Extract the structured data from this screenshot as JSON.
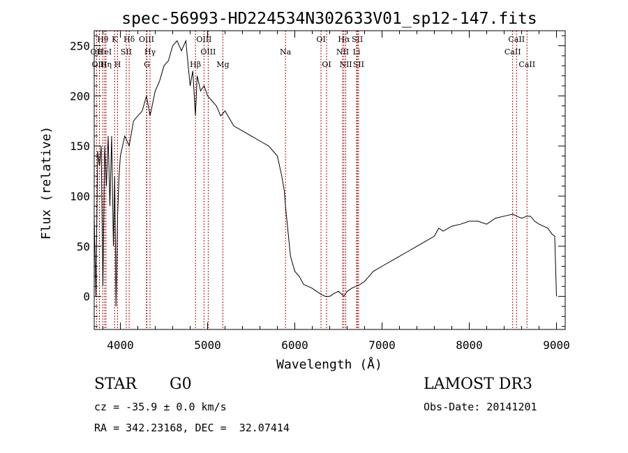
{
  "chart_data": {
    "type": "line",
    "title": "spec-56993-HD224534N302633V01_sp12-147.fits",
    "xlabel": "Wavelength (Å)",
    "ylabel": "Flux (relative)",
    "xlim": [
      3700,
      9100
    ],
    "ylim": [
      -33,
      265
    ],
    "x_ticks": [
      4000,
      5000,
      6000,
      7000,
      8000,
      9000
    ],
    "y_ticks": [
      0,
      50,
      100,
      150,
      200,
      250
    ],
    "grid": false,
    "series": [
      {
        "x": [
          3700,
          3720,
          3740,
          3760,
          3780,
          3800,
          3820,
          3840,
          3860,
          3880,
          3900,
          3920,
          3935,
          3950,
          3968,
          3985,
          4000,
          4050,
          4101,
          4150,
          4200,
          4250,
          4300,
          4340,
          4400,
          4450,
          4500,
          4550,
          4600,
          4650,
          4700,
          4750,
          4800,
          4830,
          4861,
          4880,
          4920,
          4960,
          5000,
          5050,
          5100,
          5150,
          5200,
          5300,
          5400,
          5500,
          5600,
          5700,
          5800,
          5850,
          5880,
          5893,
          5910,
          5950,
          6000,
          6050,
          6100,
          6150,
          6200,
          6250,
          6300,
          6350,
          6400,
          6450,
          6500,
          6563,
          6600,
          6650,
          6700,
          6750,
          6800,
          6850,
          6900,
          7000,
          7100,
          7200,
          7300,
          7400,
          7500,
          7600,
          7650,
          7700,
          7800,
          7900,
          8000,
          8100,
          8200,
          8300,
          8400,
          8500,
          8542,
          8600,
          8662,
          8700,
          8750,
          8800,
          8850,
          8900,
          8950,
          8980,
          9000
        ],
        "y": [
          80,
          0,
          145,
          130,
          150,
          10,
          150,
          110,
          160,
          90,
          160,
          50,
          120,
          -10,
          80,
          120,
          140,
          160,
          150,
          175,
          180,
          185,
          200,
          180,
          205,
          215,
          230,
          235,
          250,
          255,
          245,
          255,
          210,
          225,
          180,
          220,
          205,
          210,
          200,
          195,
          190,
          180,
          185,
          170,
          165,
          160,
          155,
          150,
          140,
          120,
          105,
          90,
          75,
          40,
          25,
          20,
          12,
          10,
          8,
          5,
          2,
          0,
          0,
          3,
          5,
          0,
          5,
          8,
          10,
          12,
          15,
          20,
          25,
          30,
          35,
          40,
          45,
          50,
          55,
          60,
          68,
          65,
          70,
          72,
          75,
          75,
          72,
          78,
          80,
          82,
          80,
          78,
          80,
          80,
          75,
          72,
          70,
          68,
          62,
          60,
          0
        ]
      }
    ],
    "lines": [
      {
        "label": "Hθ",
        "x": 3798,
        "row": 0
      },
      {
        "label": "OII",
        "x": 3727,
        "row": 1
      },
      {
        "label": "OIII",
        "x": 3760,
        "row": 2
      },
      {
        "label": "HeI",
        "x": 3820,
        "row": 1
      },
      {
        "label": "Hη",
        "x": 3835,
        "row": 2
      },
      {
        "label": "K",
        "x": 3934,
        "row": 0
      },
      {
        "label": "SII",
        "x": 4068,
        "row": 1
      },
      {
        "label": "H",
        "x": 3968,
        "row": 2
      },
      {
        "label": "Hδ",
        "x": 4101,
        "row": 0
      },
      {
        "label": "OIII",
        "x": 4300,
        "row": 0
      },
      {
        "label": "Hγ",
        "x": 4340,
        "row": 1
      },
      {
        "label": "G",
        "x": 4304,
        "row": 2
      },
      {
        "label": "Hβ",
        "x": 4861,
        "row": 2
      },
      {
        "label": "OIII",
        "x": 4959,
        "row": 0
      },
      {
        "label": "OIII",
        "x": 5007,
        "row": 1
      },
      {
        "label": "Mg",
        "x": 5175,
        "row": 2
      },
      {
        "label": "Na",
        "x": 5893,
        "row": 1
      },
      {
        "label": "OI",
        "x": 6300,
        "row": 0
      },
      {
        "label": "OI",
        "x": 6364,
        "row": 2
      },
      {
        "label": "Hα",
        "x": 6563,
        "row": 0
      },
      {
        "label": "NII",
        "x": 6548,
        "row": 1
      },
      {
        "label": "NII",
        "x": 6584,
        "row": 2
      },
      {
        "label": "SII",
        "x": 6717,
        "row": 0
      },
      {
        "label": "Li",
        "x": 6708,
        "row": 1
      },
      {
        "label": "SII",
        "x": 6731,
        "row": 2
      },
      {
        "label": "CaII",
        "x": 8542,
        "row": 0
      },
      {
        "label": "CaII",
        "x": 8498,
        "row": 1
      },
      {
        "label": "CaII",
        "x": 8662,
        "row": 2
      }
    ]
  },
  "info": {
    "object_type": "STAR",
    "subclass": "G0",
    "survey": "LAMOST DR3",
    "cz": "cz = -35.9 ± 0.0 km/s",
    "obs_date": "Obs-Date: 20141201",
    "radec": "RA = 342.23168, DEC =  32.07414"
  }
}
